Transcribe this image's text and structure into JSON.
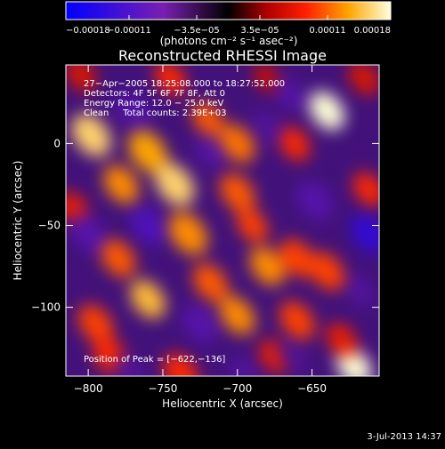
{
  "chart_data": {
    "type": "heatmap",
    "title": "Reconstructed RHESSI Image",
    "xlabel": "Heliocentric X (arcsec)",
    "ylabel": "Heliocentric Y (arcsec)",
    "xlim": [
      -815,
      -605
    ],
    "ylim": [
      -142,
      48
    ],
    "x_ticks": [
      -800,
      -750,
      -700,
      -650
    ],
    "x_tick_labels": [
      "−800",
      "−750",
      "−700",
      "−650"
    ],
    "y_ticks": [
      0,
      -50,
      -100
    ],
    "y_tick_labels": [
      "0",
      "−50",
      "−100"
    ],
    "colorbar": {
      "range": [
        -0.00018,
        0.00018
      ],
      "tick_values": [
        -0.00018,
        -0.00011,
        -3.5e-05,
        3.5e-05,
        0.00011,
        0.00018
      ],
      "tick_labels": [
        "−0.00018",
        "−0.00011",
        "−3.5e−05",
        "3.5e−05",
        "0.00011",
        "0.00018"
      ],
      "unit_label": "(photons cm⁻² s⁻¹ asec⁻²)"
    },
    "annotations": [
      "27−Apr−2005 18:25:08.000 to 18:27:52.000",
      "Detectors: 4F 5F 6F 7F 8F, Att 0",
      "Energy Range: 12.0 − 25.0 keV",
      "Clean     Total counts: 2.39E+03"
    ],
    "peak_label": "Position of Peak = [−622,−136]",
    "peak_position": [
      -622,
      -136
    ],
    "features": [
      {
        "x": -640,
        "y": 20,
        "v": 1.0,
        "s": 9
      },
      {
        "x": -622,
        "y": -136,
        "v": 1.0,
        "s": 9
      },
      {
        "x": -798,
        "y": 5,
        "v": 0.9,
        "s": 10
      },
      {
        "x": -778,
        "y": -25,
        "v": 0.75,
        "s": 9
      },
      {
        "x": -760,
        "y": -5,
        "v": 0.8,
        "s": 10
      },
      {
        "x": -742,
        "y": -25,
        "v": 0.9,
        "s": 10
      },
      {
        "x": -733,
        "y": -55,
        "v": 0.75,
        "s": 10
      },
      {
        "x": -780,
        "y": -70,
        "v": 0.65,
        "s": 9
      },
      {
        "x": -760,
        "y": -95,
        "v": 0.85,
        "s": 9
      },
      {
        "x": -795,
        "y": -110,
        "v": 0.6,
        "s": 9
      },
      {
        "x": -785,
        "y": -130,
        "v": 0.55,
        "s": 9
      },
      {
        "x": -720,
        "y": 15,
        "v": 0.65,
        "s": 8
      },
      {
        "x": -700,
        "y": 0,
        "v": 0.7,
        "s": 9
      },
      {
        "x": -700,
        "y": -30,
        "v": 0.65,
        "s": 9
      },
      {
        "x": -718,
        "y": -85,
        "v": 0.65,
        "s": 9
      },
      {
        "x": -700,
        "y": -105,
        "v": 0.75,
        "s": 9
      },
      {
        "x": -690,
        "y": -50,
        "v": 0.6,
        "s": 8
      },
      {
        "x": -680,
        "y": -75,
        "v": 0.75,
        "s": 9
      },
      {
        "x": -662,
        "y": 0,
        "v": 0.55,
        "s": 8
      },
      {
        "x": -660,
        "y": -70,
        "v": 0.6,
        "s": 9
      },
      {
        "x": -660,
        "y": -108,
        "v": 0.6,
        "s": 9
      },
      {
        "x": -640,
        "y": -78,
        "v": 0.6,
        "s": 9
      },
      {
        "x": -612,
        "y": -28,
        "v": 0.55,
        "s": 8
      },
      {
        "x": -630,
        "y": -120,
        "v": 0.5,
        "s": 8
      },
      {
        "x": -738,
        "y": -140,
        "v": 0.55,
        "s": 9
      },
      {
        "x": -675,
        "y": -130,
        "v": 0.5,
        "s": 8
      },
      {
        "x": -745,
        "y": 40,
        "v": 0.55,
        "s": 8
      },
      {
        "x": -680,
        "y": 40,
        "v": 0.4,
        "s": 7
      },
      {
        "x": -805,
        "y": 42,
        "v": 0.45,
        "s": 8
      },
      {
        "x": -810,
        "y": -40,
        "v": 0.5,
        "s": 8
      },
      {
        "x": -615,
        "y": 40,
        "v": 0.45,
        "s": 8
      },
      {
        "x": -800,
        "y": -55,
        "v": -0.5,
        "s": 9
      },
      {
        "x": -760,
        "y": -50,
        "v": -0.6,
        "s": 9
      },
      {
        "x": -770,
        "y": 20,
        "v": -0.45,
        "s": 9
      },
      {
        "x": -725,
        "y": -110,
        "v": -0.5,
        "s": 9
      },
      {
        "x": -718,
        "y": -5,
        "v": -0.45,
        "s": 8
      },
      {
        "x": -680,
        "y": 10,
        "v": -0.4,
        "s": 8
      },
      {
        "x": -665,
        "y": 30,
        "v": -0.45,
        "s": 8
      },
      {
        "x": -648,
        "y": -35,
        "v": -0.5,
        "s": 9
      },
      {
        "x": -612,
        "y": -55,
        "v": -0.75,
        "s": 9
      },
      {
        "x": -618,
        "y": -90,
        "v": -0.4,
        "s": 8
      },
      {
        "x": -662,
        "y": -130,
        "v": -0.35,
        "s": 8
      },
      {
        "x": -695,
        "y": -140,
        "v": -0.4,
        "s": 8
      },
      {
        "x": -772,
        "y": -140,
        "v": -0.4,
        "s": 8
      }
    ]
  },
  "footer": {
    "timestamp": "3-Jul-2013 14:37"
  },
  "colors": {
    "background": "#000000",
    "text": "#ffffff",
    "axis": "#ffffff"
  }
}
